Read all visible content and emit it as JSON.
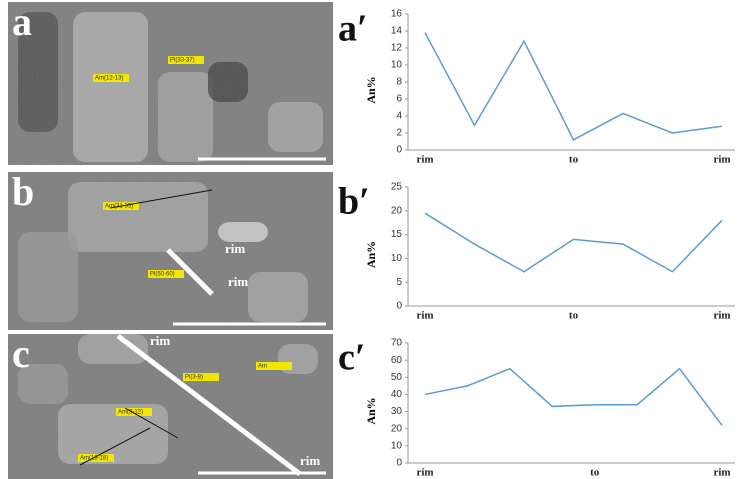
{
  "images": [
    {
      "label": "a",
      "annotations": [
        "Am(12-13)",
        "Pl(33-37)"
      ]
    },
    {
      "label": "b",
      "annotations": [
        "Am(31-35)",
        "Pl(50-60)",
        "rim",
        "rim"
      ]
    },
    {
      "label": "c",
      "annotations": [
        "rim",
        "rim",
        "Pl(3-8)",
        "Am",
        "Am(3-12)",
        "Am(13-18)"
      ]
    }
  ],
  "chart_data": [
    {
      "type": "line",
      "panel": "a′",
      "ylabel": "An%",
      "categories": [
        "rim",
        null,
        null,
        "to",
        null,
        null,
        "rim"
      ],
      "series": [
        {
          "color": "#5b9bd5",
          "values": [
            13.8,
            2.9,
            12.8,
            1.2,
            4.3,
            2.0,
            2.8
          ]
        }
      ],
      "ylim": [
        0,
        16
      ],
      "yticks": [
        0,
        2,
        4,
        6,
        8,
        10,
        12,
        14,
        16
      ]
    },
    {
      "type": "line",
      "panel": "b′",
      "ylabel": "An%",
      "categories": [
        "rim",
        null,
        null,
        "to",
        null,
        null,
        "rim"
      ],
      "series": [
        {
          "color": "#5b9bd5",
          "values": [
            19.5,
            13,
            7.2,
            14,
            13,
            7.2,
            18
          ]
        }
      ],
      "ylim": [
        0,
        25
      ],
      "yticks": [
        0,
        5,
        10,
        15,
        20,
        25
      ]
    },
    {
      "type": "line",
      "panel": "c′",
      "ylabel": "An%",
      "categories": [
        "rim",
        null,
        null,
        null,
        "to",
        null,
        null,
        "rim"
      ],
      "series": [
        {
          "color": "#5b9bd5",
          "values": [
            40,
            45,
            55,
            33,
            34,
            34,
            55,
            22
          ]
        }
      ],
      "ylim": [
        0,
        70
      ],
      "yticks": [
        0,
        10,
        20,
        30,
        40,
        50,
        60,
        70
      ]
    }
  ]
}
